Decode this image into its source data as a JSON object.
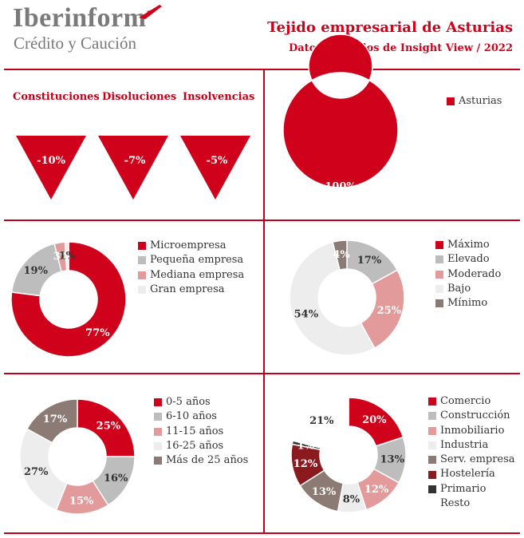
{
  "header": {
    "logo_main": "Iberinform",
    "logo_sub": "Crédito y Caución",
    "title": "Tejido empresarial de Asturias",
    "subtitle": "Datos extraídos de Insight View / 2022"
  },
  "colors": {
    "accent": "#d0021b",
    "divider": "#c3001a"
  },
  "indicators": [
    {
      "label": "Constituciones",
      "value": "-10%"
    },
    {
      "label": "Disoluciones",
      "value": "-7%"
    },
    {
      "label": "Insolvencias",
      "value": "-5%"
    }
  ],
  "chart_data": [
    {
      "type": "donut",
      "categories": [
        "Asturias"
      ],
      "values": [
        100
      ],
      "labels": [
        "100%"
      ],
      "colors": [
        "#d0021b"
      ]
    },
    {
      "type": "donut",
      "categories": [
        "Microempresa",
        "Pequeña empresa",
        "Mediana empresa",
        "Gran empresa"
      ],
      "values": [
        77,
        19,
        3,
        1
      ],
      "labels": [
        "77%",
        "19%",
        "3%",
        "1%"
      ],
      "colors": [
        "#d0021b",
        "#bdbdbd",
        "#e39a9b",
        "#ededed"
      ]
    },
    {
      "type": "donut",
      "categories": [
        "Máximo",
        "Elevado",
        "Moderado",
        "Bajo",
        "Mínimo"
      ],
      "values": [
        0,
        17,
        25,
        54,
        4
      ],
      "labels": [
        "",
        "17%",
        "25%",
        "54%",
        "4%"
      ],
      "colors": [
        "#d0021b",
        "#bdbdbd",
        "#e39a9b",
        "#ededed",
        "#8c7b74"
      ]
    },
    {
      "type": "donut",
      "categories": [
        "0-5 años",
        "6-10 años",
        "11-15 años",
        "16-25 años",
        "Más de 25 años"
      ],
      "values": [
        25,
        16,
        15,
        27,
        17
      ],
      "labels": [
        "25%",
        "16%",
        "15%",
        "27%",
        "17%"
      ],
      "colors": [
        "#d0021b",
        "#bdbdbd",
        "#e39a9b",
        "#ededed",
        "#8c7b74"
      ]
    },
    {
      "type": "donut",
      "categories": [
        "Comercio",
        "Construcción",
        "Inmobiliario",
        "Industria",
        "Serv. empresa",
        "Hostelería",
        "Primario",
        "Resto"
      ],
      "values": [
        20,
        13,
        12,
        8,
        13,
        12,
        1,
        21
      ],
      "labels": [
        "20%",
        "13%",
        "12%",
        "8%",
        "13%",
        "12%",
        "1%",
        "21%"
      ],
      "colors": [
        "#d0021b",
        "#bdbdbd",
        "#e39a9b",
        "#ededed",
        "#8c7b74",
        "#8b1a1f",
        "#333333",
        "#ffffff"
      ]
    }
  ]
}
